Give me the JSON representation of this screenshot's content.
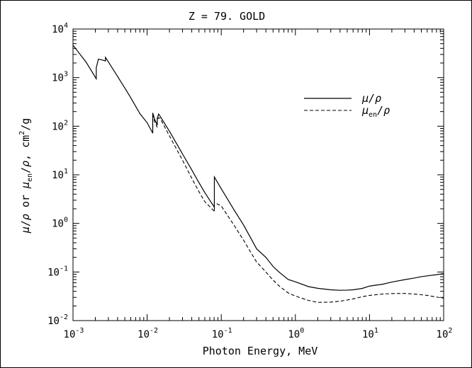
{
  "chart_data": {
    "type": "line",
    "title": "Z = 79.  GOLD",
    "xlabel": "Photon Energy, MeV",
    "ylabel": "μ/ρ or μ_en/ρ, cm²/g",
    "ylabel_parts": {
      "mu": "μ",
      "slash": "/",
      "rho": "ρ",
      "or": " or ",
      "en": "en",
      "sep": ", ",
      "unit_cm": "cm",
      "unit_exp": "2",
      "unit_g": "/g"
    },
    "x_scale": "log",
    "y_scale": "log",
    "xlim": [
      0.001,
      100
    ],
    "ylim": [
      0.01,
      10000
    ],
    "x_ticks": [
      {
        "base": "10",
        "exp": "-3",
        "value": 0.001
      },
      {
        "base": "10",
        "exp": "-2",
        "value": 0.01
      },
      {
        "base": "10",
        "exp": "-1",
        "value": 0.1
      },
      {
        "base": "10",
        "exp": "0",
        "value": 1
      },
      {
        "base": "10",
        "exp": "1",
        "value": 10
      },
      {
        "base": "10",
        "exp": "2",
        "value": 100
      }
    ],
    "y_ticks": [
      {
        "base": "10",
        "exp": "-2",
        "value": 0.01
      },
      {
        "base": "10",
        "exp": "-1",
        "value": 0.1
      },
      {
        "base": "10",
        "exp": "0",
        "value": 1
      },
      {
        "base": "10",
        "exp": "1",
        "value": 10
      },
      {
        "base": "10",
        "exp": "2",
        "value": 100
      },
      {
        "base": "10",
        "exp": "3",
        "value": 1000
      },
      {
        "base": "10",
        "exp": "4",
        "value": 10000
      }
    ],
    "grid": false,
    "legend": "top-right",
    "series": [
      {
        "name": "μ/ρ",
        "legend_parts": {
          "main": "μ",
          "sub": "",
          "tail": "/ρ"
        },
        "style": "solid",
        "color": "#000000",
        "points": [
          [
            0.001,
            4652
          ],
          [
            0.0015,
            2089
          ],
          [
            0.00206,
            950
          ],
          [
            0.00206,
            1600
          ],
          [
            0.0022,
            2400
          ],
          [
            0.0025,
            2300
          ],
          [
            0.00274,
            2200
          ],
          [
            0.00274,
            2600
          ],
          [
            0.003,
            2111
          ],
          [
            0.004,
            1050
          ],
          [
            0.005,
            613
          ],
          [
            0.006,
            388
          ],
          [
            0.008,
            181
          ],
          [
            0.01,
            118
          ],
          [
            0.0119,
            72
          ],
          [
            0.0119,
            188
          ],
          [
            0.0126,
            140
          ],
          [
            0.0137,
            105
          ],
          [
            0.0137,
            145
          ],
          [
            0.0143,
            178
          ],
          [
            0.015,
            160
          ],
          [
            0.02,
            78.8
          ],
          [
            0.03,
            26.9
          ],
          [
            0.04,
            12.6
          ],
          [
            0.05,
            6.9
          ],
          [
            0.06,
            4.3
          ],
          [
            0.08,
            2.2
          ],
          [
            0.0807,
            2.1
          ],
          [
            0.0807,
            9.0
          ],
          [
            0.1,
            5.16
          ],
          [
            0.15,
            1.86
          ],
          [
            0.2,
            0.928
          ],
          [
            0.3,
            0.3
          ],
          [
            0.4,
            0.2
          ],
          [
            0.5,
            0.13
          ],
          [
            0.6,
            0.1
          ],
          [
            0.8,
            0.07
          ],
          [
            1,
            0.0628
          ],
          [
            1.5,
            0.05
          ],
          [
            2,
            0.0462
          ],
          [
            3,
            0.043
          ],
          [
            4,
            0.042
          ],
          [
            5,
            0.0424
          ],
          [
            6,
            0.043
          ],
          [
            8,
            0.046
          ],
          [
            10,
            0.0513
          ],
          [
            15,
            0.056
          ],
          [
            20,
            0.0621
          ],
          [
            30,
            0.0697
          ],
          [
            40,
            0.0749
          ],
          [
            50,
            0.0801
          ],
          [
            60,
            0.0832
          ],
          [
            80,
            0.0881
          ],
          [
            100,
            0.0928
          ]
        ]
      },
      {
        "name": "μen/ρ",
        "legend_parts": {
          "main": "μ",
          "sub": "en",
          "tail": "/ρ"
        },
        "style": "dashed",
        "color": "#000000",
        "points": [
          [
            0.0119,
            72
          ],
          [
            0.0119,
            170
          ],
          [
            0.0126,
            125
          ],
          [
            0.0137,
            95
          ],
          [
            0.0137,
            135
          ],
          [
            0.0143,
            150
          ],
          [
            0.015,
            145
          ],
          [
            0.02,
            63
          ],
          [
            0.03,
            20
          ],
          [
            0.04,
            8.5
          ],
          [
            0.05,
            4.5
          ],
          [
            0.06,
            2.8
          ],
          [
            0.08,
            1.8
          ],
          [
            0.0807,
            1.7
          ],
          [
            0.0807,
            2.7
          ],
          [
            0.1,
            2.28
          ],
          [
            0.15,
            0.9
          ],
          [
            0.2,
            0.45
          ],
          [
            0.3,
            0.16
          ],
          [
            0.4,
            0.1
          ],
          [
            0.5,
            0.068
          ],
          [
            0.6,
            0.052
          ],
          [
            0.8,
            0.037
          ],
          [
            1,
            0.032
          ],
          [
            1.5,
            0.026
          ],
          [
            2,
            0.0237
          ],
          [
            3,
            0.024
          ],
          [
            4,
            0.025
          ],
          [
            5,
            0.0265
          ],
          [
            6,
            0.028
          ],
          [
            8,
            0.031
          ],
          [
            10,
            0.033
          ],
          [
            15,
            0.0352
          ],
          [
            20,
            0.036
          ],
          [
            30,
            0.0362
          ],
          [
            40,
            0.0352
          ],
          [
            50,
            0.034
          ],
          [
            60,
            0.033
          ],
          [
            80,
            0.0305
          ],
          [
            100,
            0.0289
          ]
        ]
      }
    ]
  }
}
